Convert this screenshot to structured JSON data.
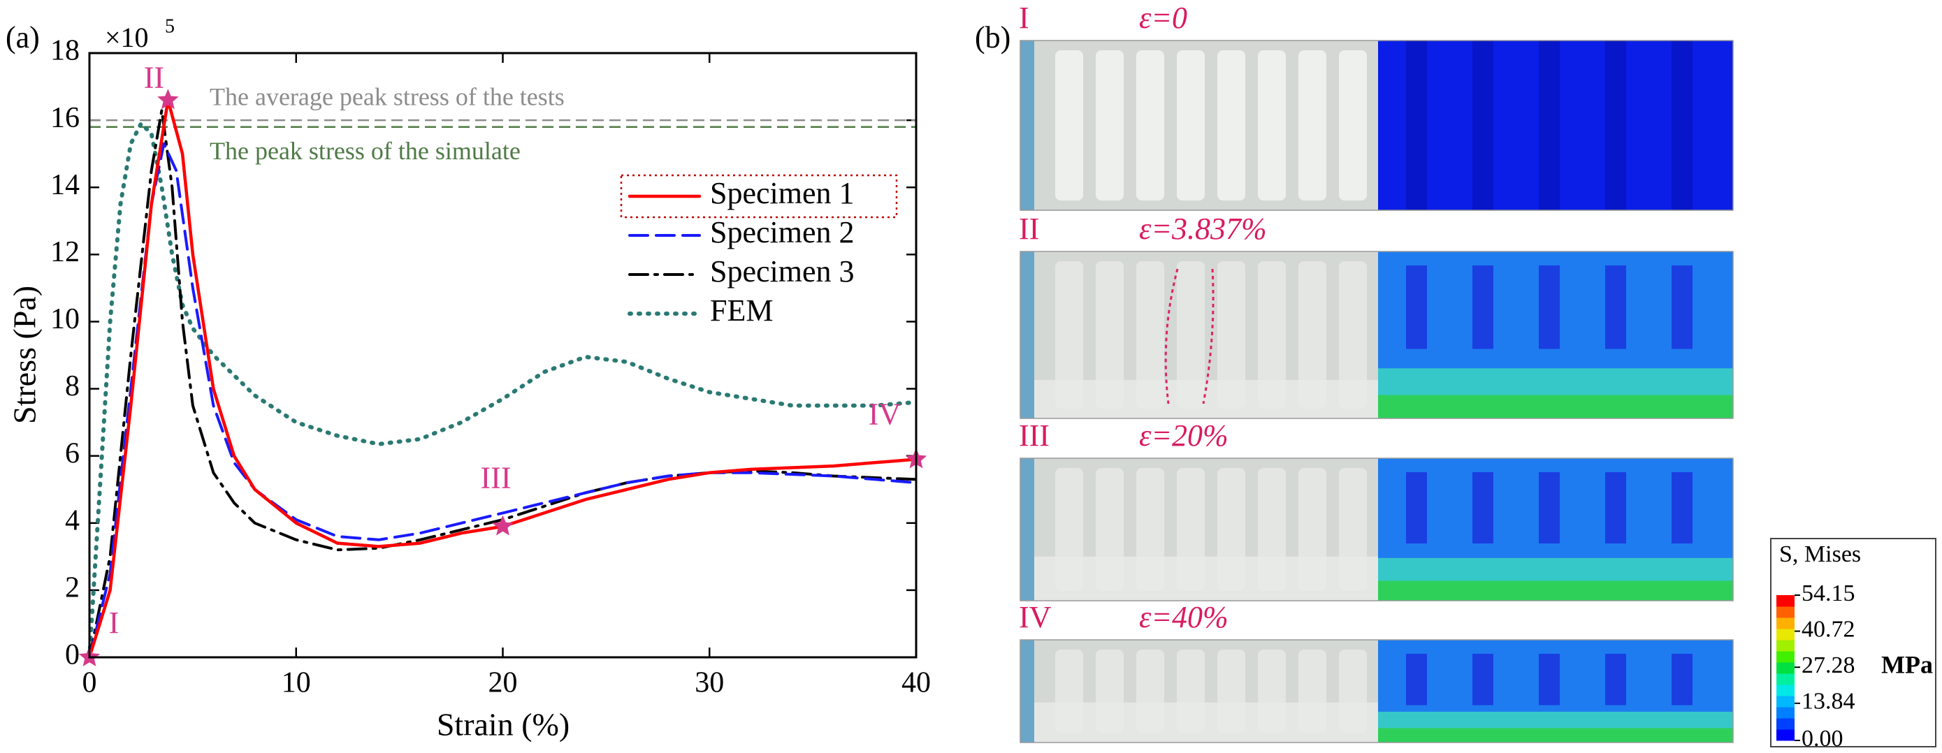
{
  "chart_data": {
    "type": "line",
    "panel_label": "(a)",
    "x_label": "Strain (%)",
    "y_label": "Stress (Pa)",
    "y_multiplier": "×10",
    "y_multiplier_exp": "5",
    "xlim": [
      0,
      40
    ],
    "xticks": [
      0,
      10,
      20,
      30,
      40
    ],
    "ylim": [
      0,
      18
    ],
    "yticks": [
      0,
      2,
      4,
      6,
      8,
      10,
      12,
      14,
      16,
      18
    ],
    "legend": "upper right",
    "series": [
      {
        "name": "Specimen 1",
        "color": "#ff0000",
        "style": "solid",
        "x": [
          0,
          1,
          2,
          3,
          3.8,
          4.5,
          5,
          6,
          7,
          8,
          10,
          12,
          14,
          16,
          18,
          20,
          22,
          24,
          26,
          28,
          30,
          32,
          34,
          36,
          38,
          40
        ],
        "values": [
          0,
          2,
          7.5,
          13.5,
          16.6,
          15,
          12,
          8,
          6,
          5,
          4,
          3.4,
          3.3,
          3.4,
          3.7,
          3.9,
          4.3,
          4.7,
          5,
          5.3,
          5.5,
          5.6,
          5.65,
          5.7,
          5.8,
          5.9
        ]
      },
      {
        "name": "Specimen 2",
        "color": "#1a1aff",
        "style": "dashed",
        "x": [
          0,
          1,
          2,
          3,
          3.6,
          4.2,
          5,
          6,
          7,
          8,
          10,
          12,
          14,
          16,
          18,
          20,
          22,
          24,
          26,
          28,
          30,
          32,
          34,
          36,
          38,
          40
        ],
        "values": [
          0,
          2.5,
          8,
          13.5,
          15.3,
          14.5,
          11,
          7.5,
          5.8,
          5,
          4.1,
          3.6,
          3.5,
          3.7,
          4,
          4.3,
          4.6,
          4.9,
          5.2,
          5.4,
          5.5,
          5.5,
          5.45,
          5.4,
          5.3,
          5.2
        ]
      },
      {
        "name": "Specimen 3",
        "color": "#000000",
        "style": "dashdot",
        "x": [
          0,
          1,
          2,
          3,
          3.5,
          4,
          4.5,
          5,
          6,
          7,
          8,
          10,
          12,
          14,
          16,
          18,
          20,
          22,
          24,
          26,
          28,
          30,
          32,
          34,
          36,
          38,
          40
        ],
        "values": [
          0,
          3,
          9,
          14.5,
          16.3,
          14,
          10,
          7.5,
          5.5,
          4.6,
          4,
          3.5,
          3.2,
          3.25,
          3.5,
          3.8,
          4.1,
          4.5,
          4.9,
          5.2,
          5.4,
          5.5,
          5.55,
          5.5,
          5.4,
          5.35,
          5.3
        ]
      },
      {
        "name": "FEM",
        "color": "#2a7a73",
        "style": "dotted",
        "x": [
          0,
          0.5,
          1,
          1.5,
          2,
          2.5,
          3,
          3.5,
          4,
          4.5,
          5,
          6,
          8,
          10,
          12,
          14,
          16,
          18,
          20,
          22,
          24,
          26,
          28,
          30,
          32,
          34,
          36,
          38,
          40
        ],
        "values": [
          0,
          5,
          10,
          13.5,
          15.3,
          15.9,
          15.6,
          14,
          12,
          10.5,
          9.8,
          9,
          7.8,
          7,
          6.6,
          6.35,
          6.5,
          7,
          7.7,
          8.5,
          8.95,
          8.8,
          8.3,
          7.9,
          7.7,
          7.5,
          7.5,
          7.5,
          7.6
        ]
      }
    ],
    "reference_lines": [
      {
        "label": "The average peak stress of the tests",
        "value": 16.0,
        "color": "#8c8c8c"
      },
      {
        "label": "The peak stress of the simulate",
        "value": 15.8,
        "color": "#4f7a46"
      }
    ],
    "points": [
      {
        "label": "I",
        "x": 0,
        "y": 0
      },
      {
        "label": "II",
        "x": 3.8,
        "y": 16.6
      },
      {
        "label": "III",
        "x": 20,
        "y": 3.9
      },
      {
        "label": "IV",
        "x": 40,
        "y": 5.9
      }
    ],
    "point_color": "#d6398a"
  },
  "figure_b": {
    "panel_label": "(b)",
    "rows": [
      {
        "label": "I",
        "strain": "ε=0"
      },
      {
        "label": "II",
        "strain": "ε=3.837%"
      },
      {
        "label": "III",
        "strain": "ε=20%"
      },
      {
        "label": "IV",
        "strain": "ε=40%"
      }
    ],
    "colorbar": {
      "title": "S, Mises",
      "unit": "MPa",
      "lim": [
        0,
        54.15
      ],
      "ticks": [
        54.15,
        40.72,
        27.28,
        13.84,
        {
          "value": 0,
          "label": "0.00"
        }
      ]
    }
  }
}
